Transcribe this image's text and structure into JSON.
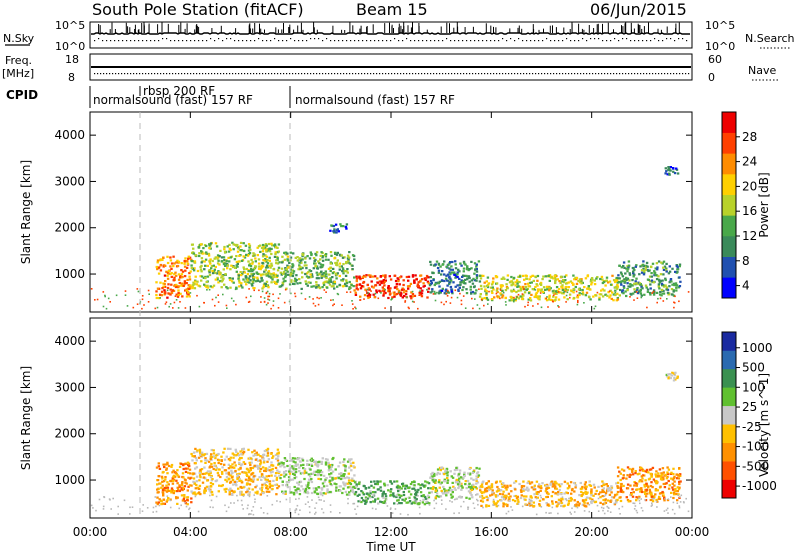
{
  "header": {
    "station": "South Pole Station (fitACF)",
    "beam": "Beam 15",
    "date": "06/Jun/2015"
  },
  "top_panels": {
    "nsky_label": "N.Sky",
    "nsky_ticks": [
      "10^5",
      "10^0"
    ],
    "nsky_right_ticks": [
      "10^5",
      "10^0"
    ],
    "nsearch_label": "N.Search",
    "freq_label": "Freq.",
    "freq_unit": "[MHz]",
    "freq_ticks": [
      "18",
      "8"
    ],
    "nave_ticks": [
      "60",
      "0"
    ],
    "nave_label": "Nave",
    "cpid_label": "CPID",
    "cpid_segments": [
      {
        "name": "normalsound (fast) 157 RF",
        "start_h": 0,
        "end_h": 8
      },
      {
        "name": "rbsp 200 RF",
        "start_h": 2,
        "end_h": 2.2
      },
      {
        "name": "normalsound (fast) 157 RF",
        "start_h": 8,
        "end_h": 24
      }
    ]
  },
  "chart_data": [
    {
      "type": "heatmap",
      "title": "",
      "xlabel": "",
      "ylabel": "Slant Range [km]",
      "xlim": [
        0,
        24
      ],
      "ylim": [
        180,
        4500
      ],
      "x_ticks": [
        "00:00",
        "04:00",
        "08:00",
        "12:00",
        "16:00",
        "20:00",
        "00:00"
      ],
      "y_ticks": [
        1000,
        2000,
        3000,
        4000
      ],
      "colorbar": {
        "label": "Power [dB]",
        "ticks": [
          "28",
          "24",
          "20",
          "16",
          "12",
          "8",
          "4"
        ],
        "range": [
          0,
          30
        ],
        "colors": [
          "#0000ff",
          "#2050b0",
          "#3a8a5a",
          "#49a84a",
          "#b8d22a",
          "#ffd000",
          "#ff8c00",
          "#ff4000",
          "#ee0000"
        ]
      },
      "echo_regions": [
        {
          "t0": 2.6,
          "t1": 4.0,
          "r0": 500,
          "r1": 1400,
          "value": 22
        },
        {
          "t0": 4.0,
          "t1": 7.5,
          "r0": 700,
          "r1": 1700,
          "value": 14
        },
        {
          "t0": 7.5,
          "t1": 10.5,
          "r0": 700,
          "r1": 1500,
          "value": 12
        },
        {
          "t0": 9.5,
          "t1": 10.2,
          "r0": 1900,
          "r1": 2100,
          "value": 6
        },
        {
          "t0": 10.5,
          "t1": 13.5,
          "r0": 500,
          "r1": 1000,
          "value": 26
        },
        {
          "t0": 13.5,
          "t1": 15.5,
          "r0": 600,
          "r1": 1300,
          "value": 8
        },
        {
          "t0": 15.5,
          "t1": 21.0,
          "r0": 450,
          "r1": 1000,
          "value": 16
        },
        {
          "t0": 21.0,
          "t1": 23.5,
          "r0": 550,
          "r1": 1300,
          "value": 10
        },
        {
          "t0": 22.9,
          "t1": 23.4,
          "r0": 3150,
          "r1": 3350,
          "value": 5
        }
      ]
    },
    {
      "type": "heatmap",
      "title": "",
      "xlabel": "Time UT",
      "ylabel": "Slant Range [km]",
      "xlim": [
        0,
        24
      ],
      "ylim": [
        180,
        4500
      ],
      "x_ticks": [
        "00:00",
        "04:00",
        "08:00",
        "12:00",
        "16:00",
        "20:00",
        "00:00"
      ],
      "y_ticks": [
        1000,
        2000,
        3000,
        4000
      ],
      "colorbar": {
        "label": "Velocity [m s^-1]",
        "ticks": [
          "1000",
          "500",
          "100",
          "25",
          "-25",
          "-100",
          "-500",
          "-1000"
        ],
        "range": [
          -1000,
          1000
        ],
        "colors": [
          "#ee0000",
          "#ff5000",
          "#ff9000",
          "#ffc000",
          "#c8c8c8",
          "#60c030",
          "#3a9050",
          "#2a6ab0",
          "#1a2aa0"
        ]
      },
      "echo_regions": [
        {
          "t0": 2.6,
          "t1": 4.0,
          "r0": 500,
          "r1": 1400,
          "value": -400
        },
        {
          "t0": 4.0,
          "t1": 7.5,
          "r0": 700,
          "r1": 1700,
          "value": -200
        },
        {
          "t0": 7.5,
          "t1": 10.5,
          "r0": 700,
          "r1": 1500,
          "value": 80
        },
        {
          "t0": 10.5,
          "t1": 13.5,
          "r0": 500,
          "r1": 1000,
          "value": 300
        },
        {
          "t0": 13.5,
          "t1": 15.5,
          "r0": 600,
          "r1": 1300,
          "value": 50
        },
        {
          "t0": 15.5,
          "t1": 21.0,
          "r0": 450,
          "r1": 1000,
          "value": -250
        },
        {
          "t0": 21.0,
          "t1": 23.5,
          "r0": 550,
          "r1": 1300,
          "value": -400
        },
        {
          "t0": 22.9,
          "t1": 23.4,
          "r0": 3150,
          "r1": 3350,
          "value": 10
        }
      ]
    }
  ]
}
